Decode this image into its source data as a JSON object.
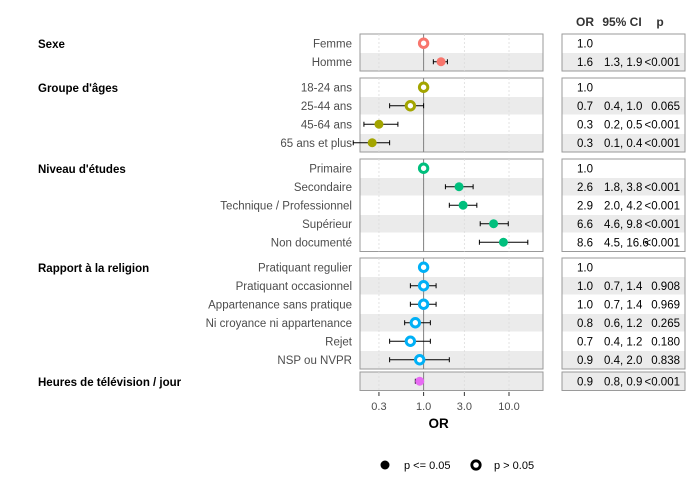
{
  "chart_data": {
    "type": "scatter",
    "subtype": "forest-plot",
    "xlabel": "OR",
    "x_scale": "log",
    "xlim": [
      0.18,
      25
    ],
    "x_ticks": [
      {
        "label": "0.3",
        "value": 0.3
      },
      {
        "label": "1.0",
        "value": 1.0
      },
      {
        "label": "3.0",
        "value": 3.0
      },
      {
        "label": "10.0",
        "value": 10.0
      }
    ],
    "reference_line": 1.0,
    "table_headers": {
      "or": "OR",
      "ci": "95% CI",
      "p": "p"
    },
    "legend": {
      "placement": "bottom",
      "items": [
        {
          "label": "p <= 0.05",
          "marker": "filled"
        },
        {
          "label": "p > 0.05",
          "marker": "hollow"
        }
      ]
    },
    "colors": {
      "Sexe": "#F8766D",
      "Groupe d'âges": "#A3A500",
      "Niveau d'études": "#00BF7D",
      "Rapport à la religion": "#00B0F6",
      "Heures de télévision / jour": "#E76BF3",
      "panel_bg": "#EBEBEB",
      "ref_line": "#808080"
    },
    "groups": [
      {
        "name": "Sexe",
        "rows": [
          {
            "label": "Femme",
            "or": 1.0,
            "lo": null,
            "hi": null,
            "or_text": "1.0",
            "ci_text": "",
            "p_text": "",
            "significant": false
          },
          {
            "label": "Homme",
            "or": 1.6,
            "lo": 1.3,
            "hi": 1.9,
            "or_text": "1.6",
            "ci_text": "1.3, 1.9",
            "p_text": "<0.001",
            "significant": true
          }
        ]
      },
      {
        "name": "Groupe d'âges",
        "rows": [
          {
            "label": "18-24 ans",
            "or": 1.0,
            "lo": null,
            "hi": null,
            "or_text": "1.0",
            "ci_text": "",
            "p_text": "",
            "significant": false
          },
          {
            "label": "25-44 ans",
            "or": 0.7,
            "lo": 0.4,
            "hi": 1.0,
            "or_text": "0.7",
            "ci_text": "0.4, 1.0",
            "p_text": "0.065",
            "significant": false
          },
          {
            "label": "45-64 ans",
            "or": 0.3,
            "lo": 0.2,
            "hi": 0.5,
            "or_text": "0.3",
            "ci_text": "0.2, 0.5",
            "p_text": "<0.001",
            "significant": true
          },
          {
            "label": "65 ans et plus",
            "or": 0.25,
            "lo": 0.15,
            "hi": 0.4,
            "or_text": "0.3",
            "ci_text": "0.1, 0.4",
            "p_text": "<0.001",
            "significant": true
          }
        ]
      },
      {
        "name": "Niveau d'études",
        "rows": [
          {
            "label": "Primaire",
            "or": 1.0,
            "lo": null,
            "hi": null,
            "or_text": "1.0",
            "ci_text": "",
            "p_text": "",
            "significant": false
          },
          {
            "label": "Secondaire",
            "or": 2.6,
            "lo": 1.8,
            "hi": 3.8,
            "or_text": "2.6",
            "ci_text": "1.8, 3.8",
            "p_text": "<0.001",
            "significant": true
          },
          {
            "label": "Technique / Professionnel",
            "or": 2.9,
            "lo": 2.0,
            "hi": 4.2,
            "or_text": "2.9",
            "ci_text": "2.0, 4.2",
            "p_text": "<0.001",
            "significant": true
          },
          {
            "label": "Supérieur",
            "or": 6.6,
            "lo": 4.6,
            "hi": 9.8,
            "or_text": "6.6",
            "ci_text": "4.6, 9.8",
            "p_text": "<0.001",
            "significant": true
          },
          {
            "label": "Non documenté",
            "or": 8.6,
            "lo": 4.5,
            "hi": 16.6,
            "or_text": "8.6",
            "ci_text": "4.5, 16.6",
            "p_text": "<0.001",
            "significant": true
          }
        ]
      },
      {
        "name": "Rapport à la religion",
        "rows": [
          {
            "label": "Pratiquant regulier",
            "or": 1.0,
            "lo": null,
            "hi": null,
            "or_text": "1.0",
            "ci_text": "",
            "p_text": "",
            "significant": false
          },
          {
            "label": "Pratiquant occasionnel",
            "or": 1.0,
            "lo": 0.7,
            "hi": 1.4,
            "or_text": "1.0",
            "ci_text": "0.7, 1.4",
            "p_text": "0.908",
            "significant": false
          },
          {
            "label": "Appartenance sans pratique",
            "or": 1.0,
            "lo": 0.7,
            "hi": 1.4,
            "or_text": "1.0",
            "ci_text": "0.7, 1.4",
            "p_text": "0.969",
            "significant": false
          },
          {
            "label": "Ni croyance ni appartenance",
            "or": 0.8,
            "lo": 0.6,
            "hi": 1.2,
            "or_text": "0.8",
            "ci_text": "0.6, 1.2",
            "p_text": "0.265",
            "significant": false
          },
          {
            "label": "Rejet",
            "or": 0.7,
            "lo": 0.4,
            "hi": 1.2,
            "or_text": "0.7",
            "ci_text": "0.4, 1.2",
            "p_text": "0.180",
            "significant": false
          },
          {
            "label": "NSP ou NVPR",
            "or": 0.9,
            "lo": 0.4,
            "hi": 2.0,
            "or_text": "0.9",
            "ci_text": "0.4, 2.0",
            "p_text": "0.838",
            "significant": false
          }
        ]
      },
      {
        "name": "Heures de télévision / jour",
        "rows": [
          {
            "label": "",
            "or": 0.9,
            "lo": 0.8,
            "hi": 0.9,
            "or_text": "0.9",
            "ci_text": "0.8, 0.9",
            "p_text": "<0.001",
            "significant": true
          }
        ]
      }
    ]
  }
}
